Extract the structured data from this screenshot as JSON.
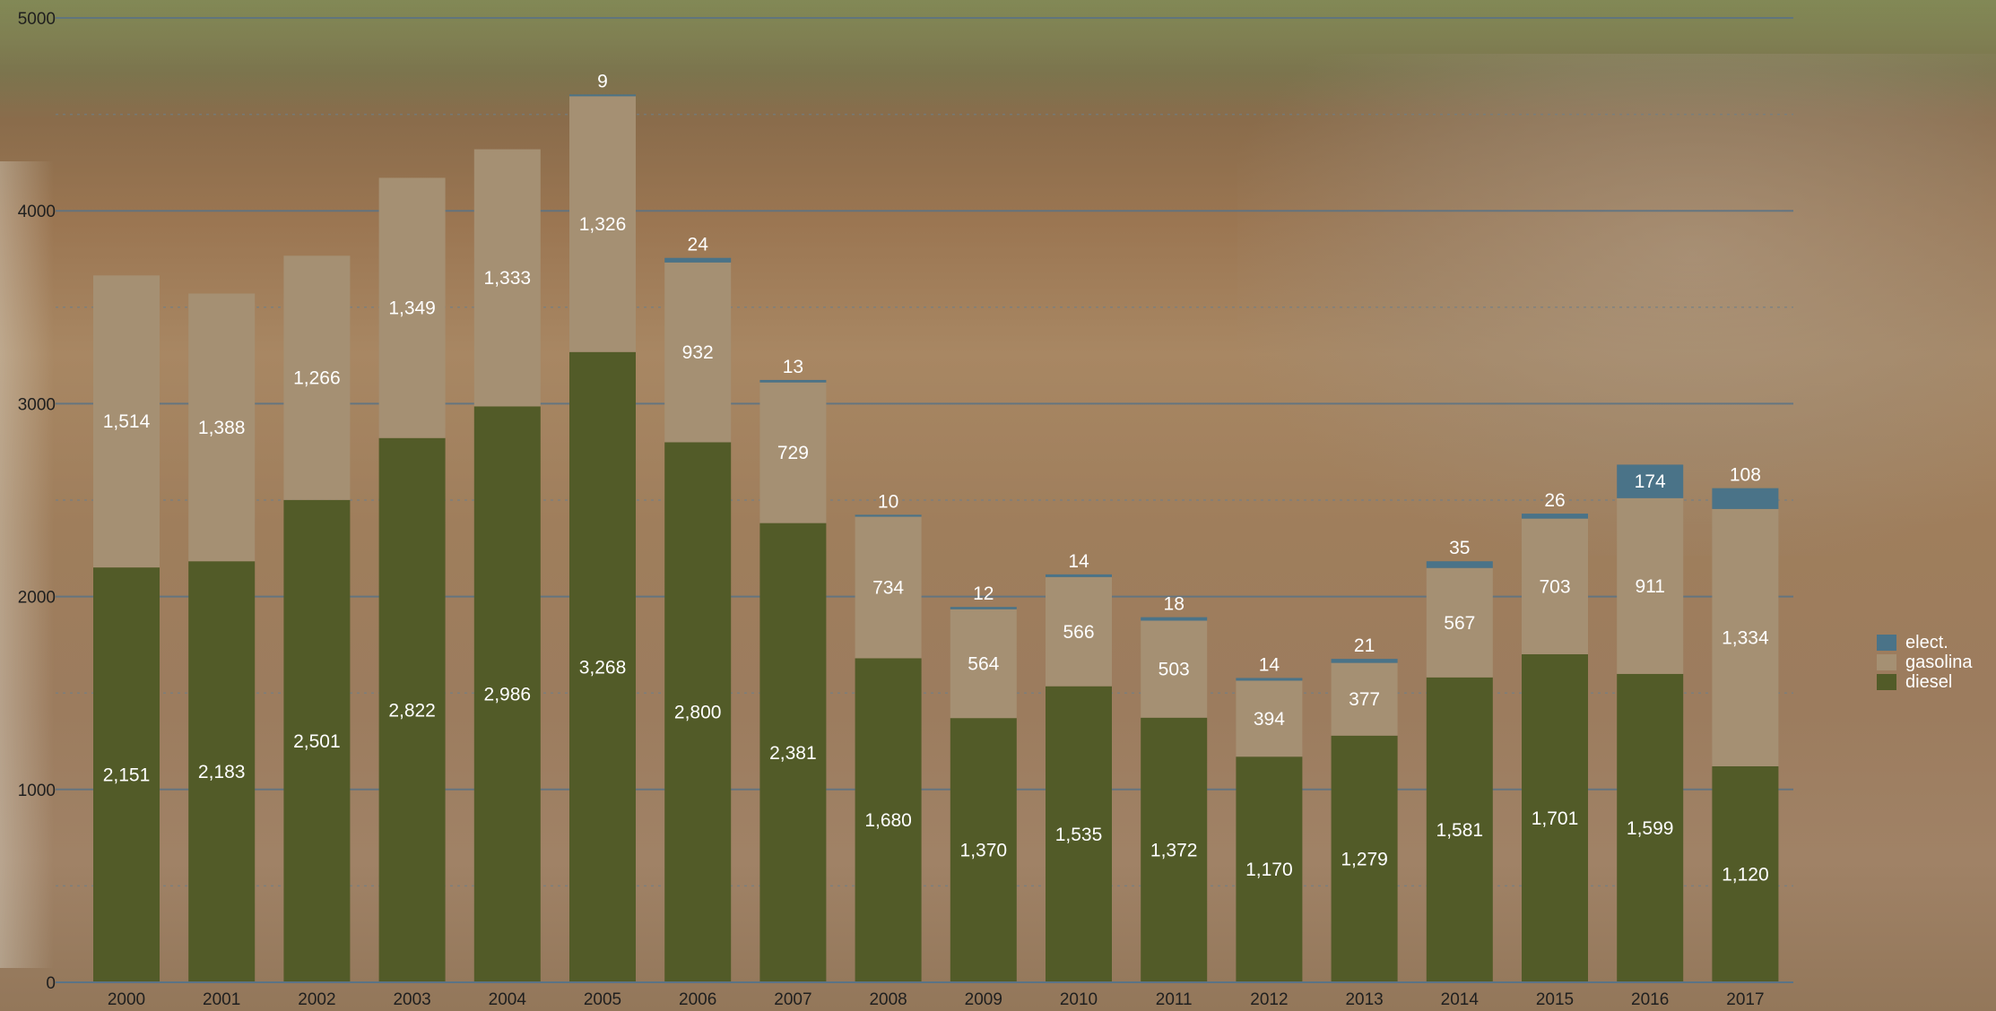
{
  "chart_data": {
    "type": "bar",
    "stacked": true,
    "categories": [
      "2000",
      "2001",
      "2002",
      "2003",
      "2004",
      "2005",
      "2006",
      "2007",
      "2008",
      "2009",
      "2010",
      "2011",
      "2012",
      "2013",
      "2014",
      "2015",
      "2016",
      "2017"
    ],
    "series": [
      {
        "name": "diesel",
        "color": "#525b28",
        "values": [
          2151,
          2183,
          2501,
          2822,
          2986,
          3268,
          2800,
          2381,
          1680,
          1370,
          1535,
          1372,
          1170,
          1279,
          1581,
          1701,
          1599,
          1120
        ]
      },
      {
        "name": "gasolina",
        "color": "#a59073",
        "values": [
          1514,
          1388,
          1266,
          1349,
          1333,
          1326,
          932,
          729,
          734,
          564,
          566,
          503,
          394,
          377,
          567,
          703,
          911,
          1334
        ]
      },
      {
        "name": "elect.",
        "color": "#4a7388",
        "values": [
          null,
          null,
          null,
          null,
          null,
          9,
          24,
          13,
          10,
          12,
          14,
          18,
          14,
          21,
          35,
          26,
          174,
          108
        ]
      }
    ],
    "ylim": [
      0,
      5000
    ],
    "yticks": [
      "0",
      "1000",
      "2000",
      "3000",
      "4000",
      "5000"
    ],
    "data_labels": {
      "diesel": [
        "2,151",
        "2,183",
        "2,501",
        "2,822",
        "2,986",
        "3,268",
        "2,800",
        "2,381",
        "1,680",
        "1,370",
        "1,535",
        "1,372",
        "1,170",
        "1,279",
        "1,581",
        "1,701",
        "1,599",
        "1,120"
      ],
      "gasolina": [
        "1,514",
        "1,388",
        "1,266",
        "1,349",
        "1,333",
        "1,326",
        "932",
        "729",
        "734",
        "564",
        "566",
        "503",
        "394",
        "377",
        "567",
        "703",
        "911",
        "1,334"
      ],
      "elect.": [
        "",
        "",
        "",
        "",
        "",
        "9",
        "24",
        "13",
        "10",
        "12",
        "14",
        "18",
        "14",
        "21",
        "35",
        "26",
        "174",
        "108"
      ]
    },
    "legend": [
      "elect.",
      "gasolina",
      "diesel"
    ],
    "legend_position": "right",
    "grid": true
  }
}
